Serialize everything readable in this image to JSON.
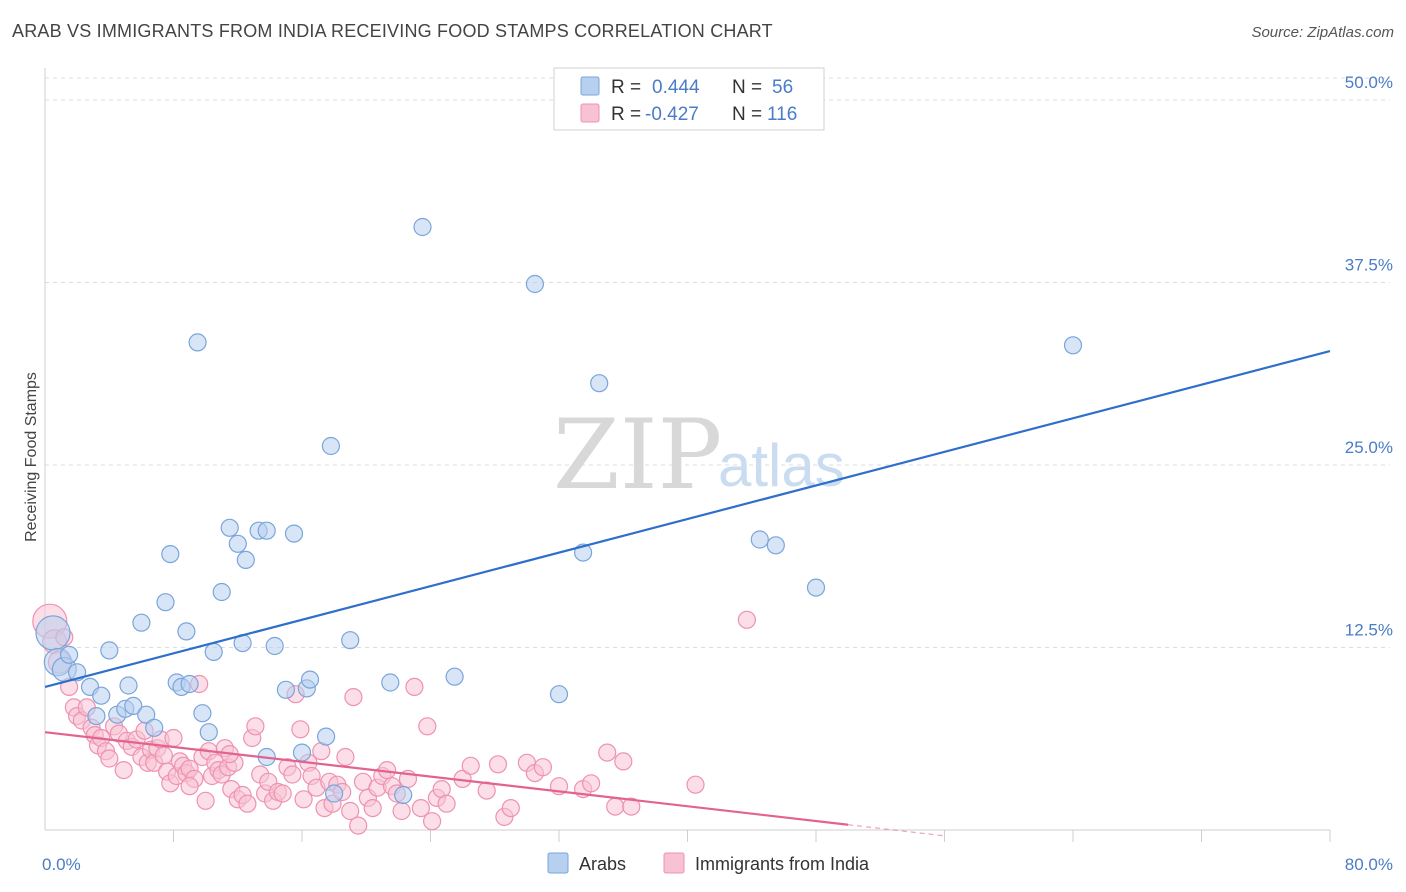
{
  "title": "ARAB VS IMMIGRANTS FROM INDIA RECEIVING FOOD STAMPS CORRELATION CHART",
  "source": "Source: ZipAtlas.com",
  "colors": {
    "arabs_fill": "#b7d0f0",
    "arabs_stroke": "#7aa5da",
    "arabs_line": "#2f6fcc",
    "india_fill": "#f7c3d3",
    "india_stroke": "#ee92b1",
    "india_line": "#e3638f",
    "grid": "#dcdcdc",
    "axis_label": "#4a7cc7"
  },
  "chart_data": {
    "type": "scatter",
    "xlabel": "",
    "ylabel": "Receiving Food Stamps",
    "xlim": [
      0,
      80
    ],
    "ylim": [
      0,
      50
    ],
    "x_tick_labels": [
      {
        "value": 0,
        "label": "0.0%"
      },
      {
        "value": 80,
        "label": "80.0%"
      }
    ],
    "y_tick_labels": [
      {
        "value": 12.5,
        "label": "12.5%"
      },
      {
        "value": 25,
        "label": "25.0%"
      },
      {
        "value": 37.5,
        "label": "37.5%"
      },
      {
        "value": 50,
        "label": "50.0%"
      }
    ],
    "watermark": {
      "part1": "ZIP",
      "part2": "atlas"
    },
    "legend": [
      {
        "name": "Arabs",
        "r_label": "R =",
        "r": "0.444",
        "n_label": "N =",
        "n": "56"
      },
      {
        "name": "Immigrants from India",
        "r_label": "R =",
        "r": "-0.427",
        "n_label": "N =",
        "n": "116"
      }
    ],
    "series": [
      {
        "name": "Arabs",
        "trend": {
          "x0": 0,
          "y0": 9.8,
          "x1": 80,
          "y1": 32.8,
          "dash_from": null
        },
        "points": [
          [
            0.5,
            13.5,
            2
          ],
          [
            0.8,
            11.5,
            1.6
          ],
          [
            1.2,
            11.0,
            1.4
          ],
          [
            1.5,
            12.0,
            1
          ],
          [
            2.0,
            10.8,
            1
          ],
          [
            2.8,
            9.8,
            1
          ],
          [
            3.2,
            7.8,
            1
          ],
          [
            3.5,
            9.2,
            1
          ],
          [
            4.0,
            12.3,
            1
          ],
          [
            4.5,
            7.9,
            1
          ],
          [
            5.0,
            8.3,
            1
          ],
          [
            5.2,
            9.9,
            1
          ],
          [
            5.5,
            8.5,
            1
          ],
          [
            6.0,
            14.2,
            1
          ],
          [
            6.3,
            7.9,
            1
          ],
          [
            6.8,
            7.0,
            1
          ],
          [
            7.5,
            15.6,
            1
          ],
          [
            7.8,
            18.9,
            1
          ],
          [
            8.2,
            10.1,
            1
          ],
          [
            8.5,
            9.8,
            1
          ],
          [
            8.8,
            13.6,
            1
          ],
          [
            9.5,
            33.4,
            1
          ],
          [
            9.8,
            8.0,
            1
          ],
          [
            10.2,
            6.7,
            1
          ],
          [
            10.5,
            12.2,
            1
          ],
          [
            11.0,
            16.3,
            1
          ],
          [
            11.5,
            20.7,
            1
          ],
          [
            12.0,
            19.6,
            1
          ],
          [
            12.3,
            12.8,
            1
          ],
          [
            12.5,
            18.5,
            1
          ],
          [
            13.3,
            20.5,
            1
          ],
          [
            13.8,
            20.5,
            1
          ],
          [
            13.8,
            5.0,
            1
          ],
          [
            14.3,
            12.6,
            1
          ],
          [
            15.5,
            20.3,
            1
          ],
          [
            16.0,
            5.3,
            1
          ],
          [
            16.3,
            9.7,
            1
          ],
          [
            16.5,
            10.3,
            1
          ],
          [
            17.5,
            6.4,
            1
          ],
          [
            17.8,
            26.3,
            1
          ],
          [
            18.0,
            2.5,
            1
          ],
          [
            19.0,
            13.0,
            1
          ],
          [
            21.5,
            10.1,
            1
          ],
          [
            22.3,
            2.4,
            1
          ],
          [
            23.5,
            41.3,
            1
          ],
          [
            25.5,
            10.5,
            1
          ],
          [
            30.5,
            37.4,
            1
          ],
          [
            32.0,
            9.3,
            1
          ],
          [
            33.5,
            19.0,
            1
          ],
          [
            34.5,
            30.6,
            1
          ],
          [
            44.5,
            19.9,
            1
          ],
          [
            45.5,
            19.5,
            1
          ],
          [
            48.0,
            16.6,
            1
          ],
          [
            64.0,
            33.2,
            1
          ],
          [
            15.0,
            9.6,
            1
          ],
          [
            9.0,
            10.0,
            1
          ]
        ]
      },
      {
        "name": "Immigrants from India",
        "trend": {
          "x0": 0,
          "y0": 6.7,
          "x1": 56,
          "y1": -0.4,
          "dash_from": 50
        },
        "points": [
          [
            0.3,
            14.3,
            2
          ],
          [
            0.6,
            12.9,
            1.4
          ],
          [
            0.9,
            11.5,
            1.3
          ],
          [
            1.2,
            13.2,
            1
          ],
          [
            1.5,
            9.8,
            1
          ],
          [
            1.8,
            8.4,
            1
          ],
          [
            2.0,
            7.8,
            1
          ],
          [
            2.3,
            7.5,
            1
          ],
          [
            2.6,
            8.4,
            1
          ],
          [
            2.9,
            7.0,
            1
          ],
          [
            3.1,
            6.5,
            1
          ],
          [
            3.3,
            5.8,
            1
          ],
          [
            3.5,
            6.3,
            1
          ],
          [
            3.8,
            5.4,
            1
          ],
          [
            4.0,
            4.9,
            1
          ],
          [
            4.3,
            7.1,
            1
          ],
          [
            4.6,
            6.6,
            1
          ],
          [
            4.9,
            4.1,
            1
          ],
          [
            5.1,
            6.1,
            1
          ],
          [
            5.4,
            5.7,
            1
          ],
          [
            5.7,
            6.2,
            1
          ],
          [
            6.0,
            5.0,
            1
          ],
          [
            6.2,
            6.8,
            1
          ],
          [
            6.4,
            4.6,
            1
          ],
          [
            6.6,
            5.5,
            1
          ],
          [
            6.8,
            4.6,
            1
          ],
          [
            7.0,
            5.6,
            1
          ],
          [
            7.2,
            6.2,
            1
          ],
          [
            7.4,
            5.1,
            1
          ],
          [
            7.6,
            4.0,
            1
          ],
          [
            7.8,
            3.2,
            1
          ],
          [
            8.0,
            6.3,
            1
          ],
          [
            8.2,
            3.7,
            1
          ],
          [
            8.4,
            4.7,
            1
          ],
          [
            8.6,
            4.4,
            1
          ],
          [
            8.8,
            3.9,
            1
          ],
          [
            9.0,
            4.2,
            1
          ],
          [
            9.3,
            3.5,
            1
          ],
          [
            9.6,
            10.0,
            1
          ],
          [
            9.8,
            5.0,
            1
          ],
          [
            10.0,
            2.0,
            1
          ],
          [
            10.2,
            5.4,
            1
          ],
          [
            10.4,
            3.7,
            1
          ],
          [
            10.6,
            4.6,
            1
          ],
          [
            10.8,
            4.1,
            1
          ],
          [
            11.0,
            3.8,
            1
          ],
          [
            11.2,
            5.6,
            1
          ],
          [
            11.4,
            4.3,
            1
          ],
          [
            11.6,
            2.8,
            1
          ],
          [
            11.8,
            4.6,
            1
          ],
          [
            12.0,
            2.1,
            1
          ],
          [
            12.3,
            2.4,
            1
          ],
          [
            12.6,
            1.8,
            1
          ],
          [
            12.9,
            6.3,
            1
          ],
          [
            13.1,
            7.1,
            1
          ],
          [
            13.4,
            3.8,
            1
          ],
          [
            13.7,
            2.5,
            1
          ],
          [
            13.9,
            3.3,
            1
          ],
          [
            14.2,
            2.0,
            1
          ],
          [
            14.5,
            2.6,
            1
          ],
          [
            14.8,
            2.5,
            1
          ],
          [
            15.1,
            4.3,
            1
          ],
          [
            15.4,
            3.8,
            1
          ],
          [
            15.6,
            9.3,
            1
          ],
          [
            15.9,
            6.9,
            1
          ],
          [
            16.1,
            2.1,
            1
          ],
          [
            16.4,
            4.6,
            1
          ],
          [
            16.6,
            3.7,
            1
          ],
          [
            16.9,
            2.9,
            1
          ],
          [
            17.2,
            5.4,
            1
          ],
          [
            17.4,
            1.5,
            1
          ],
          [
            17.7,
            3.3,
            1
          ],
          [
            17.9,
            1.8,
            1
          ],
          [
            18.2,
            3.1,
            1
          ],
          [
            18.5,
            2.6,
            1
          ],
          [
            18.7,
            5.0,
            1
          ],
          [
            19.0,
            1.3,
            1
          ],
          [
            19.2,
            9.1,
            1
          ],
          [
            19.5,
            0.3,
            1
          ],
          [
            19.8,
            3.3,
            1
          ],
          [
            20.1,
            2.2,
            1
          ],
          [
            20.4,
            1.5,
            1
          ],
          [
            20.7,
            2.9,
            1
          ],
          [
            21.0,
            3.7,
            1
          ],
          [
            21.3,
            4.1,
            1
          ],
          [
            21.6,
            3.0,
            1
          ],
          [
            21.9,
            2.5,
            1
          ],
          [
            22.2,
            1.3,
            1
          ],
          [
            22.6,
            3.5,
            1
          ],
          [
            23.0,
            9.8,
            1
          ],
          [
            23.4,
            1.5,
            1
          ],
          [
            23.8,
            7.1,
            1
          ],
          [
            24.1,
            0.6,
            1
          ],
          [
            24.4,
            2.2,
            1
          ],
          [
            24.7,
            2.8,
            1
          ],
          [
            25.0,
            1.8,
            1
          ],
          [
            26.0,
            3.5,
            1
          ],
          [
            26.5,
            4.4,
            1
          ],
          [
            27.5,
            2.7,
            1
          ],
          [
            28.2,
            4.5,
            1
          ],
          [
            28.6,
            0.9,
            1
          ],
          [
            29.0,
            1.5,
            1
          ],
          [
            30.0,
            4.6,
            1
          ],
          [
            30.5,
            3.9,
            1
          ],
          [
            31.0,
            4.3,
            1
          ],
          [
            32.0,
            3.0,
            1
          ],
          [
            33.5,
            2.8,
            1
          ],
          [
            34.0,
            3.2,
            1
          ],
          [
            35.0,
            5.3,
            1
          ],
          [
            35.5,
            1.6,
            1
          ],
          [
            36.0,
            4.7,
            1
          ],
          [
            36.5,
            1.6,
            1
          ],
          [
            40.5,
            3.1,
            1
          ],
          [
            43.7,
            14.4,
            1
          ],
          [
            9.0,
            3.0,
            1
          ],
          [
            11.5,
            5.2,
            1
          ]
        ]
      }
    ]
  }
}
